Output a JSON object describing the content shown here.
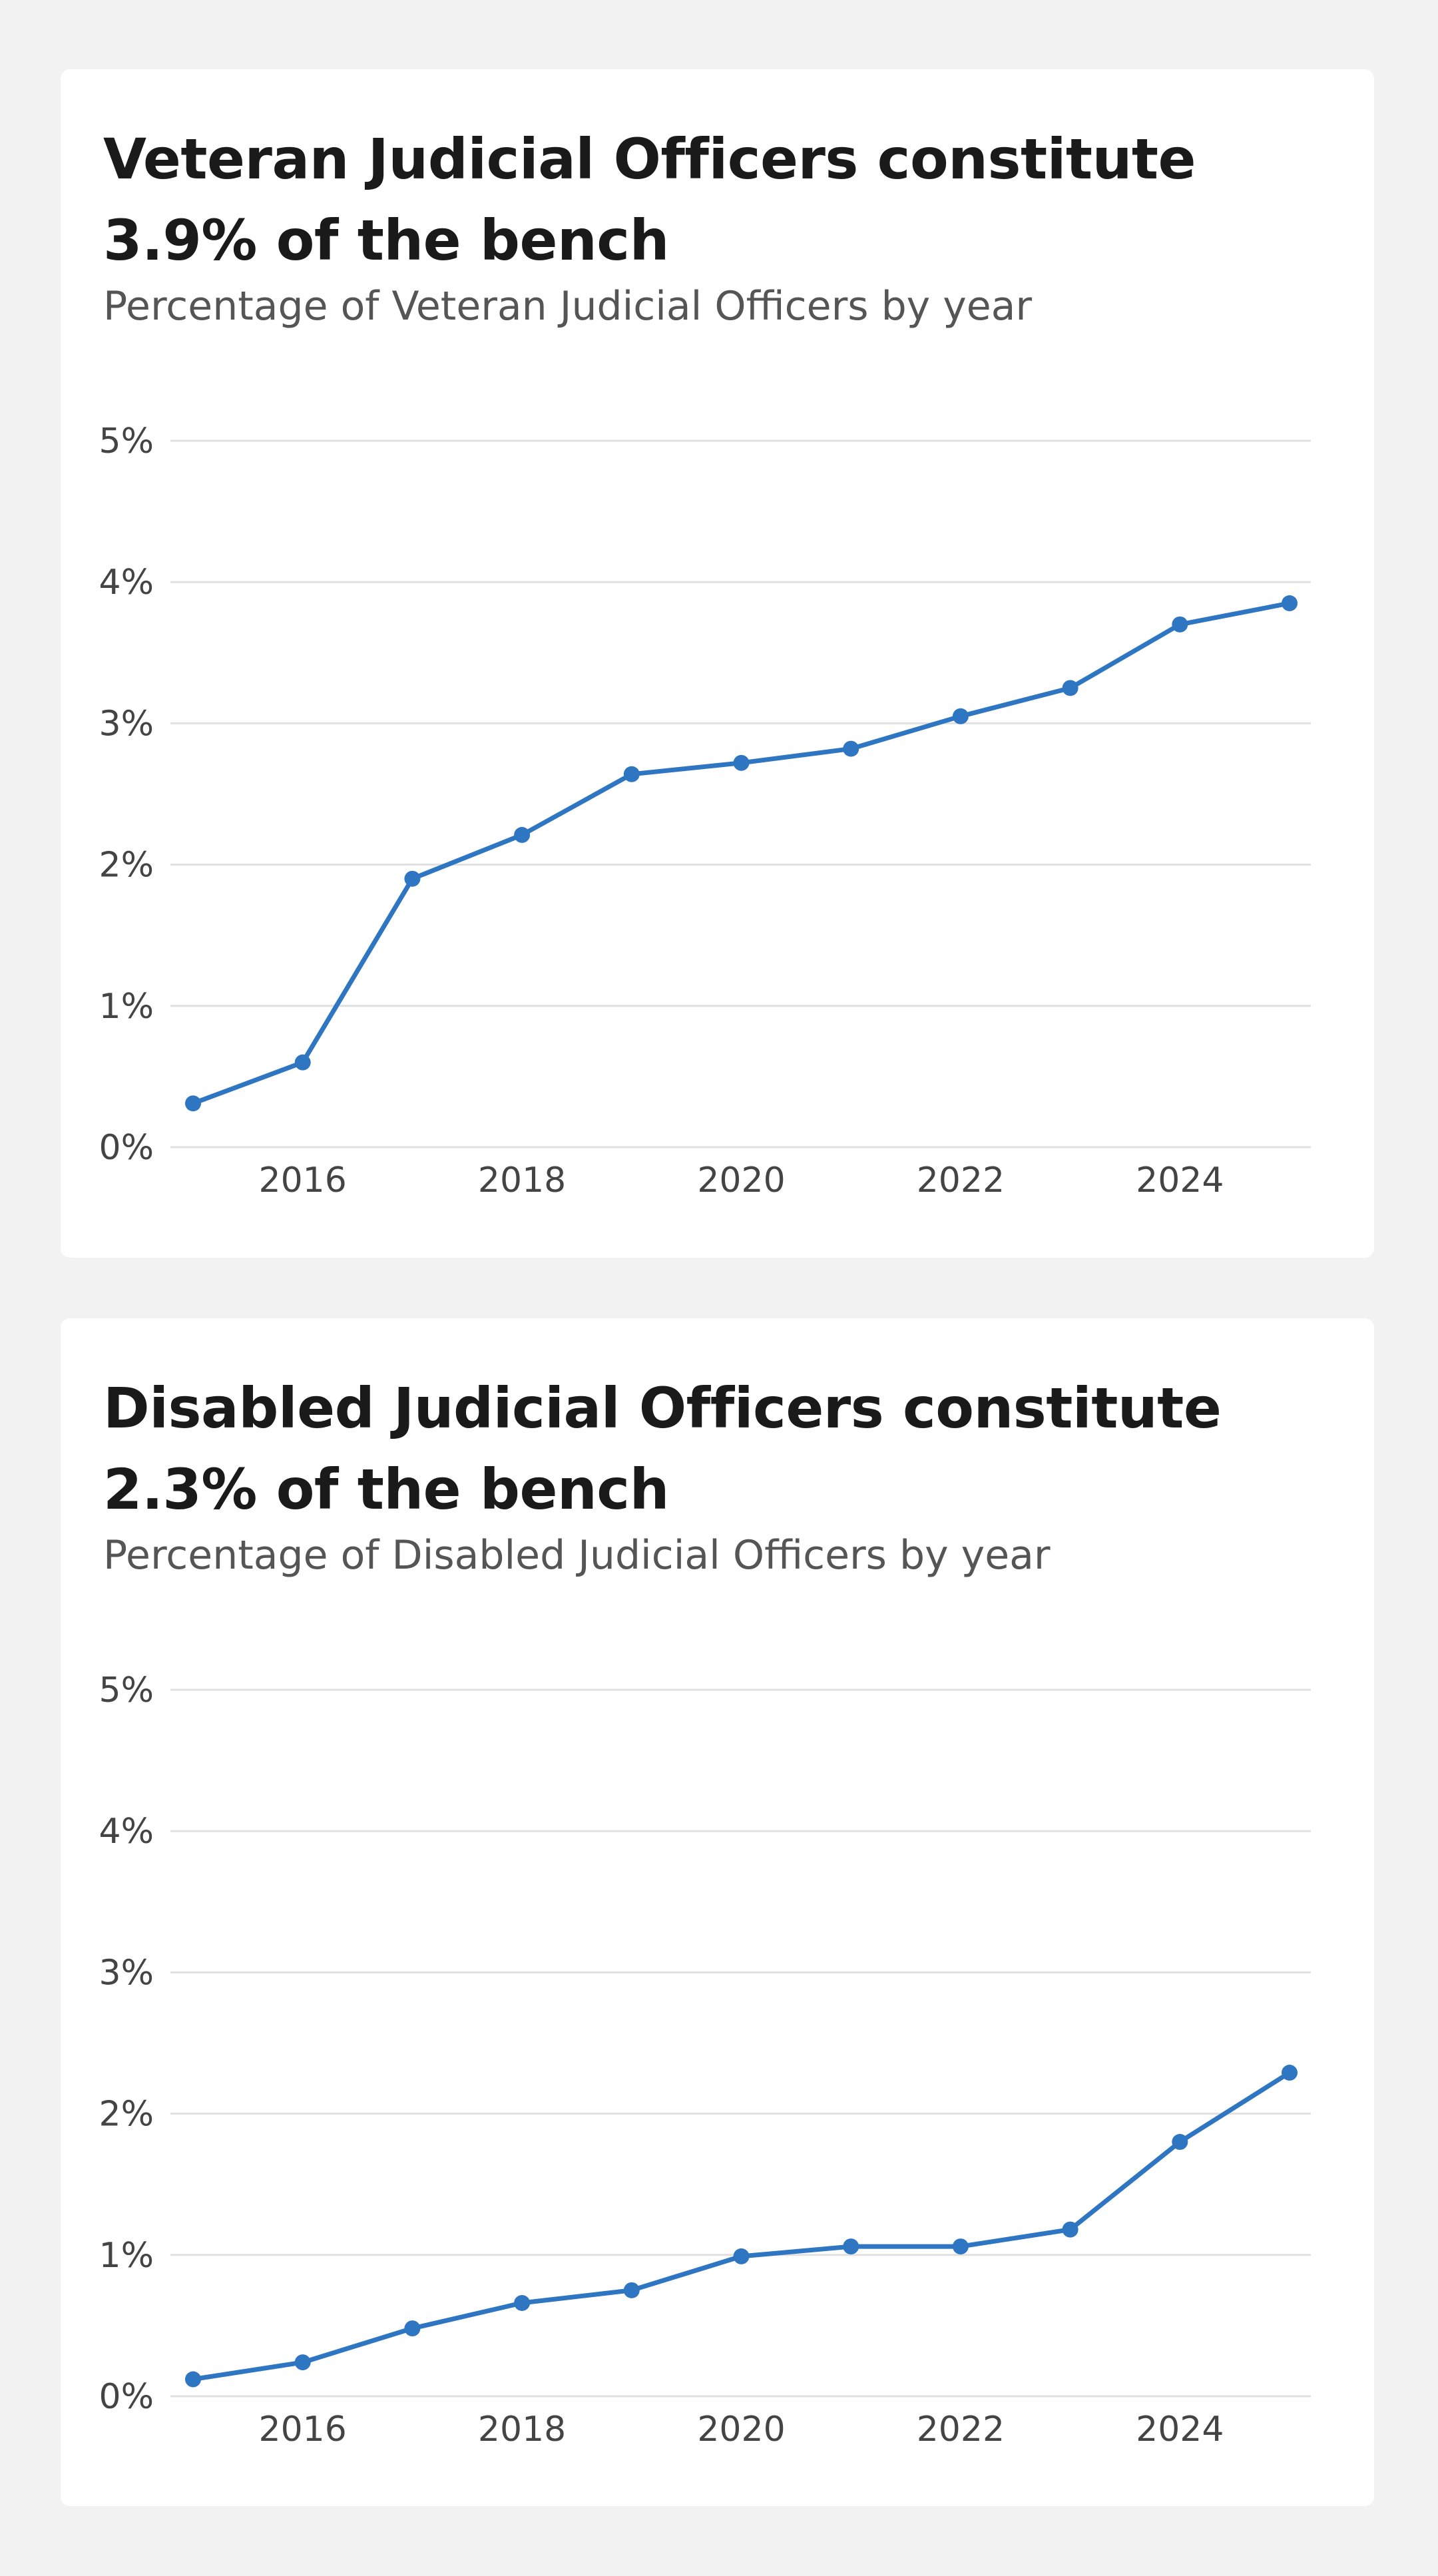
{
  "colors": {
    "series": "#2e75c2"
  },
  "chart_data": [
    {
      "type": "line",
      "title": "Veteran Judicial Officers constitute 3.9% of the bench",
      "subtitle": "Percentage of Veteran Judicial Officers by year",
      "xlim": [
        2015,
        2025
      ],
      "ylim": [
        0,
        5
      ],
      "yticks": [
        {
          "v": 0,
          "label": "0%"
        },
        {
          "v": 1,
          "label": "1%"
        },
        {
          "v": 2,
          "label": "2%"
        },
        {
          "v": 3,
          "label": "3%"
        },
        {
          "v": 4,
          "label": "4%"
        },
        {
          "v": 5,
          "label": "5%"
        }
      ],
      "xticks": [
        {
          "v": 2016,
          "label": "2016"
        },
        {
          "v": 2018,
          "label": "2018"
        },
        {
          "v": 2020,
          "label": "2020"
        },
        {
          "v": 2022,
          "label": "2022"
        },
        {
          "v": 2024,
          "label": "2024"
        }
      ],
      "grid": true,
      "legend": "none",
      "series": [
        {
          "x": [
            2015,
            2016,
            2017,
            2018,
            2019,
            2020,
            2021,
            2022,
            2023,
            2024,
            2025
          ],
          "values": [
            0.31,
            0.6,
            1.9,
            2.21,
            2.64,
            2.72,
            2.82,
            3.05,
            3.25,
            3.7,
            3.85
          ]
        }
      ]
    },
    {
      "type": "line",
      "title": "Disabled Judicial Officers constitute 2.3% of the bench",
      "subtitle": "Percentage of Disabled Judicial Officers by year",
      "xlim": [
        2015,
        2025
      ],
      "ylim": [
        0,
        5
      ],
      "yticks": [
        {
          "v": 0,
          "label": "0%"
        },
        {
          "v": 1,
          "label": "1%"
        },
        {
          "v": 2,
          "label": "2%"
        },
        {
          "v": 3,
          "label": "3%"
        },
        {
          "v": 4,
          "label": "4%"
        },
        {
          "v": 5,
          "label": "5%"
        }
      ],
      "xticks": [
        {
          "v": 2016,
          "label": "2016"
        },
        {
          "v": 2018,
          "label": "2018"
        },
        {
          "v": 2020,
          "label": "2020"
        },
        {
          "v": 2022,
          "label": "2022"
        },
        {
          "v": 2024,
          "label": "2024"
        }
      ],
      "grid": true,
      "legend": "none",
      "series": [
        {
          "x": [
            2015,
            2016,
            2017,
            2018,
            2019,
            2020,
            2021,
            2022,
            2023,
            2024,
            2025
          ],
          "values": [
            0.12,
            0.24,
            0.48,
            0.66,
            0.75,
            0.99,
            1.06,
            1.06,
            1.18,
            1.8,
            2.29
          ]
        }
      ]
    }
  ]
}
